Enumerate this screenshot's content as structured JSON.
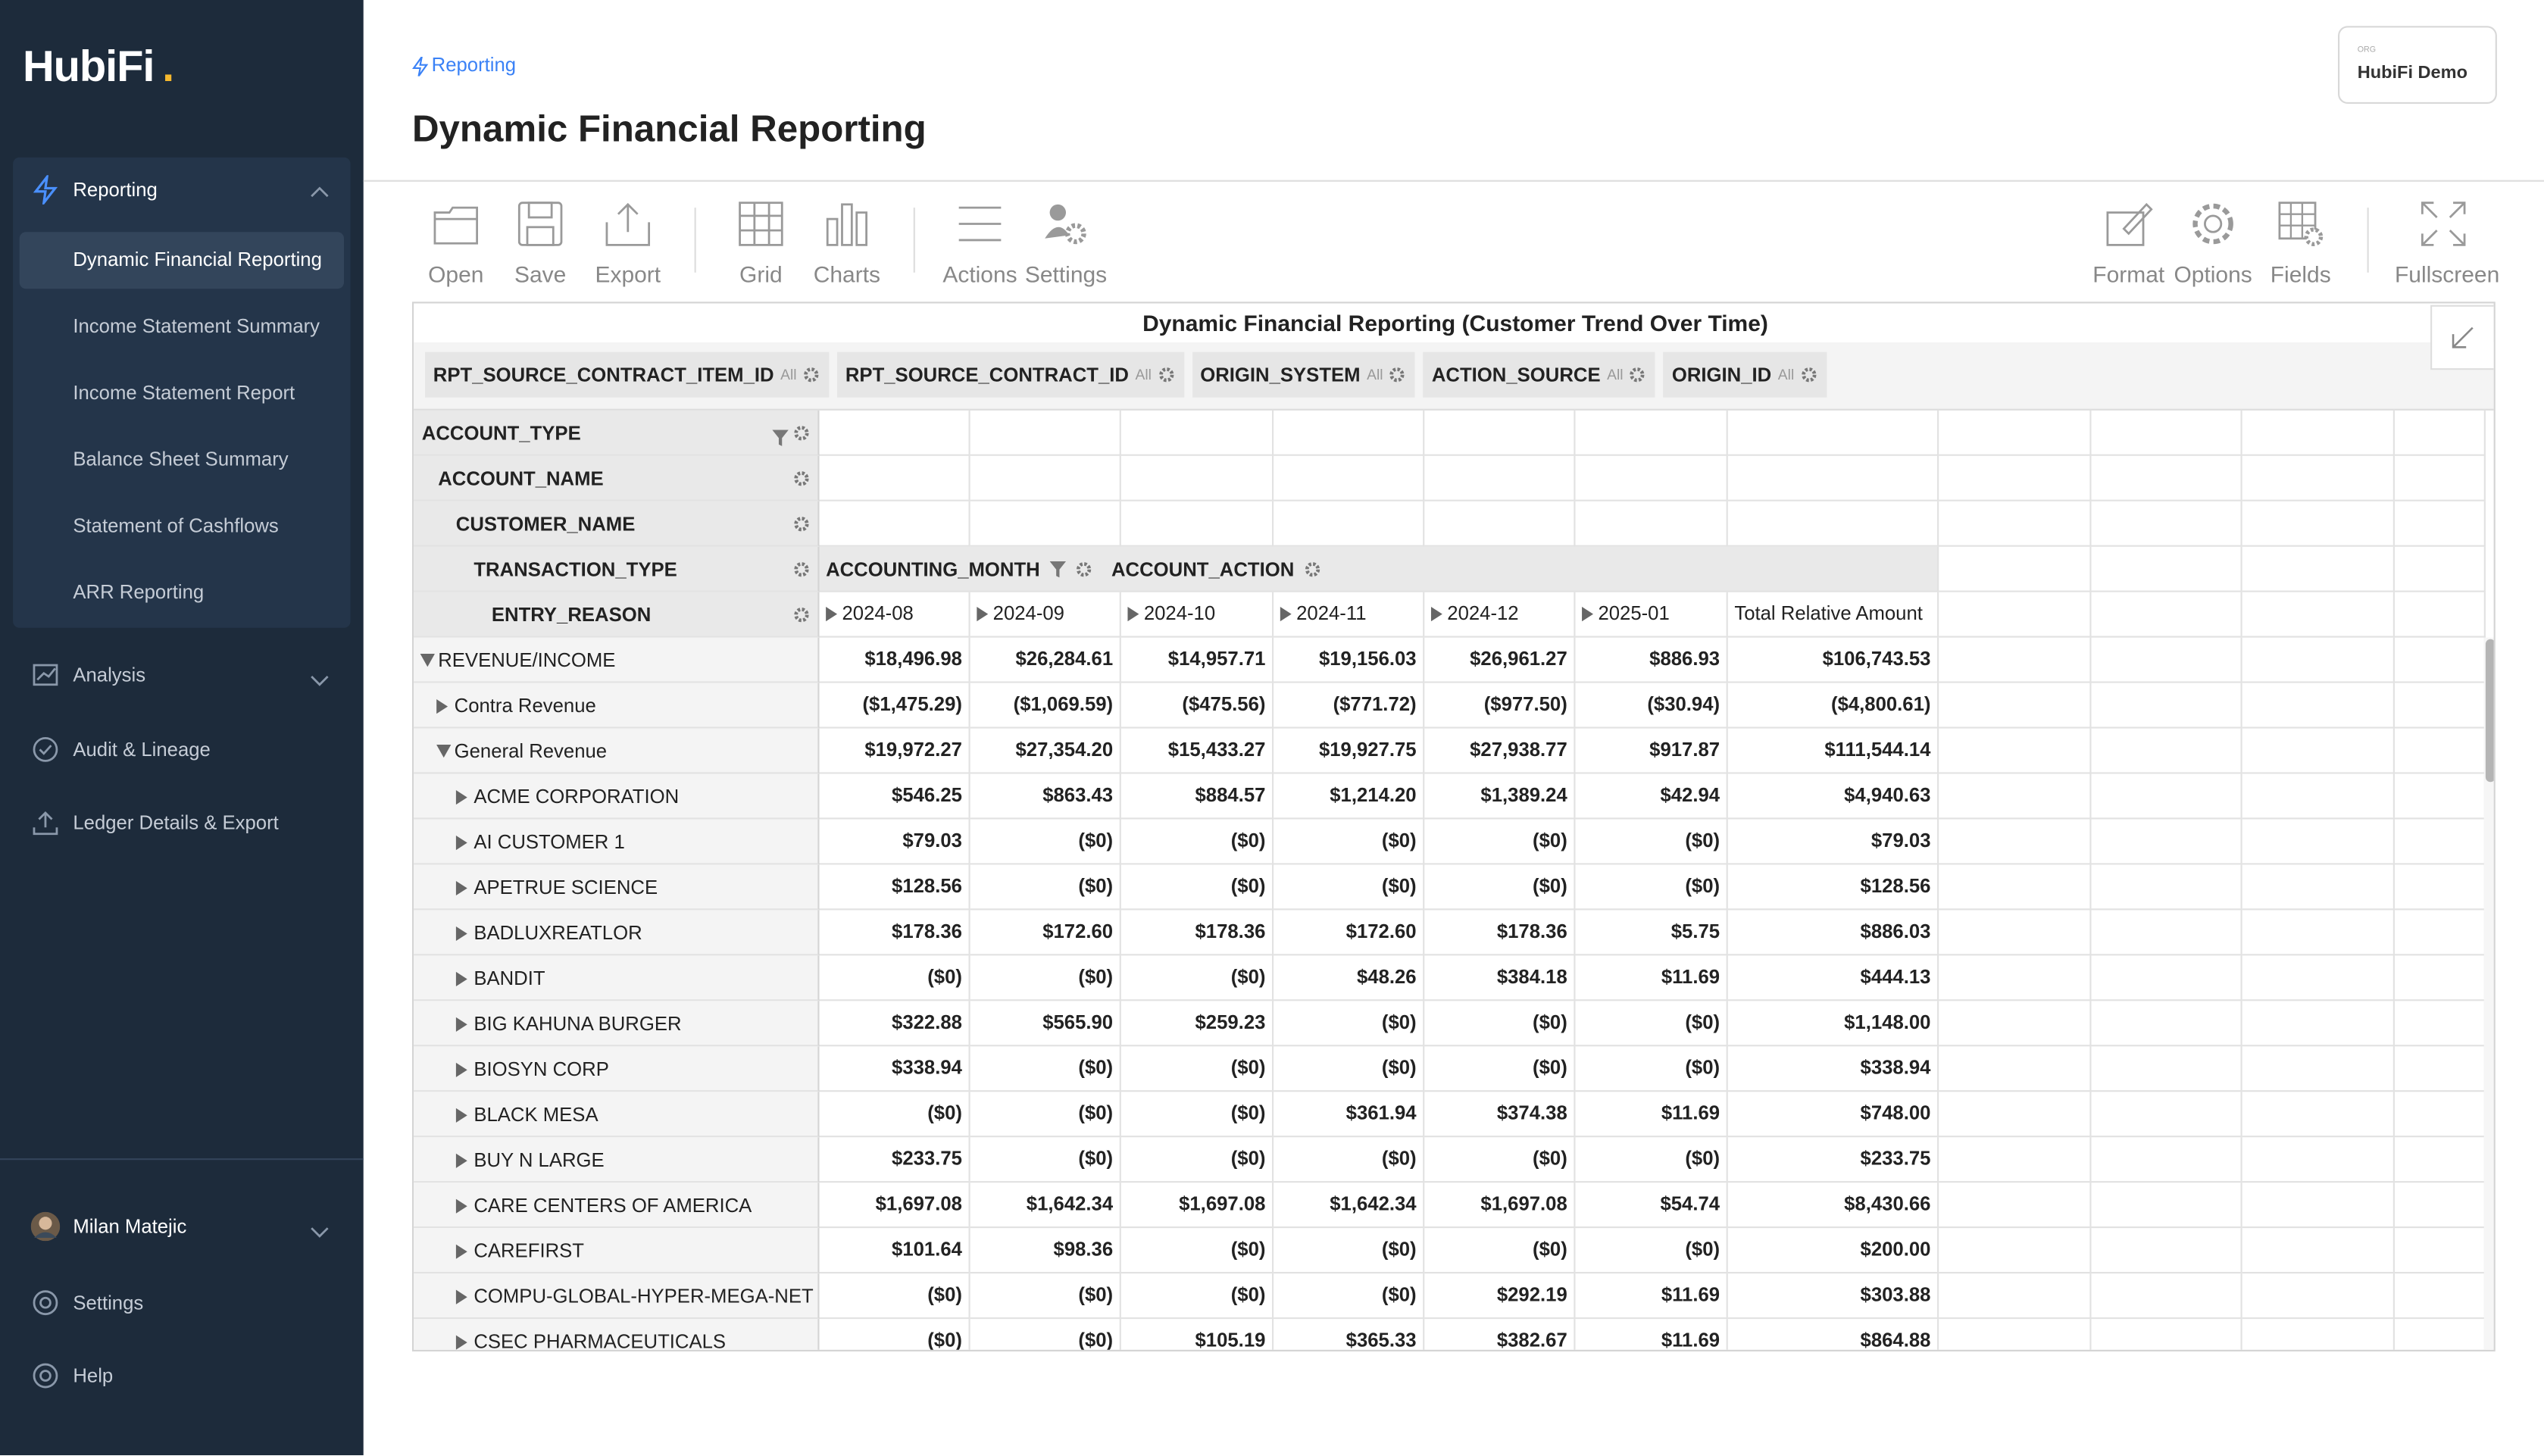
{
  "sidebar": {
    "logo": "HubiFi",
    "logo_dot": ".",
    "nav": [
      {
        "label": "Reporting",
        "children": [
          "Dynamic Financial Reporting",
          "Income Statement Summary",
          "Income Statement Report",
          "Balance Sheet Summary",
          "Statement of Cashflows",
          "ARR Reporting"
        ]
      },
      {
        "label": "Analysis"
      },
      {
        "label": "Audit & Lineage"
      },
      {
        "label": "Ledger Details & Export"
      }
    ],
    "user": "Milan Matejic",
    "footer": [
      "Settings",
      "Help"
    ]
  },
  "header": {
    "breadcrumb": "Reporting",
    "title": "Dynamic Financial Reporting",
    "org_label": "ORG",
    "org": "HubiFi Demo"
  },
  "toolbar": {
    "left": [
      "Open",
      "Save",
      "Export",
      "Grid",
      "Charts",
      "Actions",
      "Settings"
    ],
    "right": [
      "Format",
      "Options",
      "Fields",
      "Fullscreen"
    ]
  },
  "pivot": {
    "title": "Dynamic Financial Reporting (Customer Trend Over Time)",
    "report_filters": [
      {
        "name": "RPT_SOURCE_CONTRACT_ITEM_ID",
        "value": "All"
      },
      {
        "name": "RPT_SOURCE_CONTRACT_ID",
        "value": "All"
      },
      {
        "name": "ORIGIN_SYSTEM",
        "value": "All"
      },
      {
        "name": "ACTION_SOURCE",
        "value": "All"
      },
      {
        "name": "ORIGIN_ID",
        "value": "All"
      }
    ],
    "row_fields": [
      "ACCOUNT_TYPE",
      "ACCOUNT_NAME",
      "CUSTOMER_NAME",
      "TRANSACTION_TYPE",
      "ENTRY_REASON"
    ],
    "column_fields": [
      "ACCOUNTING_MONTH",
      "ACCOUNT_ACTION"
    ],
    "columns": [
      "2024-08",
      "2024-09",
      "2024-10",
      "2024-11",
      "2024-12",
      "2025-01",
      "Total Relative Amount"
    ],
    "rows": [
      {
        "label": "REVENUE/INCOME",
        "cells": [
          "$18,496.98",
          "$26,284.61",
          "$14,957.71",
          "$19,156.03",
          "$26,961.27",
          "$886.93",
          "$106,743.53"
        ],
        "children": [
          {
            "label": "Contra Revenue",
            "cells": [
              "($1,475.29)",
              "($1,069.59)",
              "($475.56)",
              "($771.72)",
              "($977.50)",
              "($30.94)",
              "($4,800.61)"
            ]
          },
          {
            "label": "General Revenue",
            "cells": [
              "$19,972.27",
              "$27,354.20",
              "$15,433.27",
              "$19,927.75",
              "$27,938.77",
              "$917.87",
              "$111,544.14"
            ],
            "children": [
              {
                "label": "ACME CORPORATION",
                "cells": [
                  "$546.25",
                  "$863.43",
                  "$884.57",
                  "$1,214.20",
                  "$1,389.24",
                  "$42.94",
                  "$4,940.63"
                ]
              },
              {
                "label": "AI CUSTOMER 1",
                "cells": [
                  "$79.03",
                  "($0)",
                  "($0)",
                  "($0)",
                  "($0)",
                  "($0)",
                  "$79.03"
                ]
              },
              {
                "label": "APETRUE SCIENCE",
                "cells": [
                  "$128.56",
                  "($0)",
                  "($0)",
                  "($0)",
                  "($0)",
                  "($0)",
                  "$128.56"
                ]
              },
              {
                "label": "BADLUXREATLOR",
                "cells": [
                  "$178.36",
                  "$172.60",
                  "$178.36",
                  "$172.60",
                  "$178.36",
                  "$5.75",
                  "$886.03"
                ]
              },
              {
                "label": "BANDIT",
                "cells": [
                  "($0)",
                  "($0)",
                  "($0)",
                  "$48.26",
                  "$384.18",
                  "$11.69",
                  "$444.13"
                ]
              },
              {
                "label": "BIG KAHUNA BURGER",
                "cells": [
                  "$322.88",
                  "$565.90",
                  "$259.23",
                  "($0)",
                  "($0)",
                  "($0)",
                  "$1,148.00"
                ]
              },
              {
                "label": "BIOSYN CORP",
                "cells": [
                  "$338.94",
                  "($0)",
                  "($0)",
                  "($0)",
                  "($0)",
                  "($0)",
                  "$338.94"
                ]
              },
              {
                "label": "BLACK MESA",
                "cells": [
                  "($0)",
                  "($0)",
                  "($0)",
                  "$361.94",
                  "$374.38",
                  "$11.69",
                  "$748.00"
                ]
              },
              {
                "label": "BUY N LARGE",
                "cells": [
                  "$233.75",
                  "($0)",
                  "($0)",
                  "($0)",
                  "($0)",
                  "($0)",
                  "$233.75"
                ]
              },
              {
                "label": "CARE CENTERS OF AMERICA",
                "cells": [
                  "$1,697.08",
                  "$1,642.34",
                  "$1,697.08",
                  "$1,642.34",
                  "$1,697.08",
                  "$54.74",
                  "$8,430.66"
                ]
              },
              {
                "label": "CAREFIRST",
                "cells": [
                  "$101.64",
                  "$98.36",
                  "($0)",
                  "($0)",
                  "($0)",
                  "($0)",
                  "$200.00"
                ]
              },
              {
                "label": "COMPU-GLOBAL-HYPER-MEGA-NET",
                "cells": [
                  "($0)",
                  "($0)",
                  "($0)",
                  "($0)",
                  "$292.19",
                  "$11.69",
                  "$303.88"
                ]
              },
              {
                "label": "CSEC PHARMACEUTICALS",
                "cells": [
                  "($0)",
                  "($0)",
                  "$105.19",
                  "$365.33",
                  "$382.67",
                  "$11.69",
                  "$864.88"
                ]
              }
            ]
          }
        ]
      }
    ]
  }
}
